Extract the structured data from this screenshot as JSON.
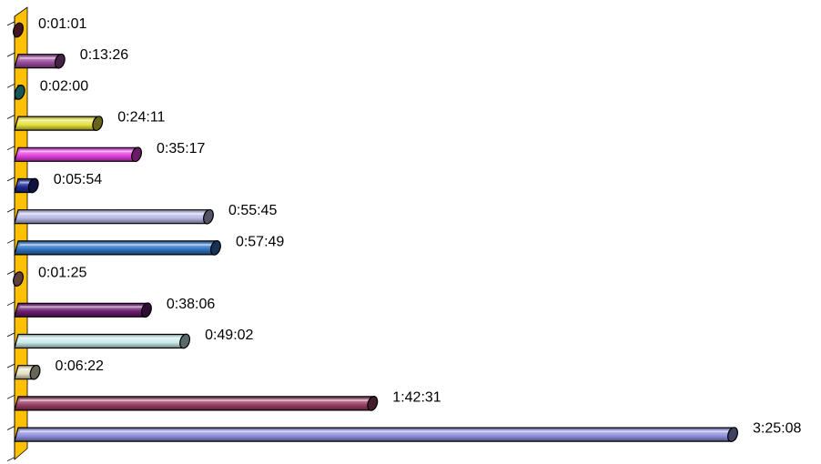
{
  "chart_data": {
    "type": "bar",
    "orientation": "horizontal",
    "style": "3d-cylinder",
    "grid": false,
    "legend": "none",
    "x_unit": "seconds",
    "xlim": [
      0,
      12308
    ],
    "wall_color": "#ffc000",
    "bars": [
      {
        "label": "0:01:01",
        "value": 61,
        "color": "#9c2f4e"
      },
      {
        "label": "0:13:26",
        "value": 806,
        "color": "#9a4a9c"
      },
      {
        "label": "0:02:00",
        "value": 120,
        "color": "#27c4c4"
      },
      {
        "label": "0:24:11",
        "value": 1451,
        "color": "#e7e13d"
      },
      {
        "label": "0:35:17",
        "value": 2117,
        "color": "#e43fe0"
      },
      {
        "label": "0:05:54",
        "value": 354,
        "color": "#1f2a96"
      },
      {
        "label": "0:55:45",
        "value": 3345,
        "color": "#b8b9e6"
      },
      {
        "label": "0:57:49",
        "value": 3469,
        "color": "#2f74c4"
      },
      {
        "label": "0:01:25",
        "value": 85,
        "color": "#d98c8c"
      },
      {
        "label": "0:38:06",
        "value": 2286,
        "color": "#6b1c73"
      },
      {
        "label": "0:49:02",
        "value": 2942,
        "color": "#c9eceb"
      },
      {
        "label": "0:06:22",
        "value": 382,
        "color": "#e5e3c4"
      },
      {
        "label": "1:42:31",
        "value": 6151,
        "color": "#9c3e66"
      },
      {
        "label": "3:25:08",
        "value": 12308,
        "color": "#8f90dd"
      }
    ]
  }
}
